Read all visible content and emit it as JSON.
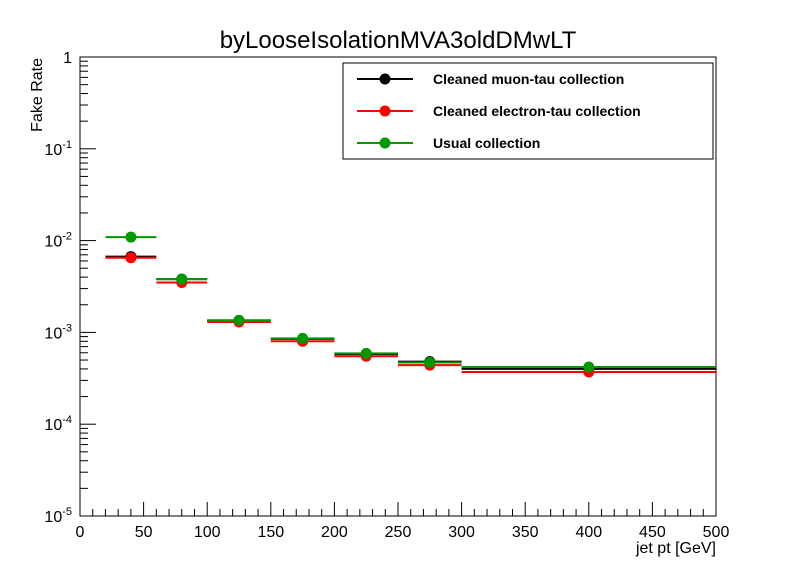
{
  "chart_data": {
    "type": "scatter",
    "title": "byLooseIsolationMVA3oldDMwLT",
    "xlabel": "jet pt [GeV]",
    "ylabel": "Fake Rate",
    "xlim": [
      0,
      500
    ],
    "ylim": [
      1e-05,
      1
    ],
    "y_scale": "log",
    "x_ticks": [
      "0",
      "50",
      "100",
      "150",
      "200",
      "250",
      "300",
      "350",
      "400",
      "450",
      "500"
    ],
    "y_ticks": [
      {
        "value": 1,
        "base": "1",
        "exp": ""
      },
      {
        "value": 0.1,
        "base": "10",
        "exp": "-1"
      },
      {
        "value": 0.01,
        "base": "10",
        "exp": "-2"
      },
      {
        "value": 0.001,
        "base": "10",
        "exp": "-3"
      },
      {
        "value": 0.0001,
        "base": "10",
        "exp": "-4"
      },
      {
        "value": 1e-05,
        "base": "10",
        "exp": "-5"
      }
    ],
    "legend_position": "top-right",
    "grid": false,
    "series": [
      {
        "name": "Cleaned muon-tau collection",
        "color": "#000000",
        "points": [
          {
            "x": 40,
            "xlo": 20,
            "xhi": 60,
            "y": 0.0067
          },
          {
            "x": 80,
            "xlo": 60,
            "xhi": 100,
            "y": 0.0038
          },
          {
            "x": 125,
            "xlo": 100,
            "xhi": 150,
            "y": 0.00135
          },
          {
            "x": 175,
            "xlo": 150,
            "xhi": 200,
            "y": 0.00085
          },
          {
            "x": 225,
            "xlo": 200,
            "xhi": 250,
            "y": 0.00058
          },
          {
            "x": 275,
            "xlo": 250,
            "xhi": 300,
            "y": 0.00048
          },
          {
            "x": 400,
            "xlo": 300,
            "xhi": 500,
            "y": 0.0004
          }
        ]
      },
      {
        "name": "Cleaned electron-tau collection",
        "color": "#ff0000",
        "points": [
          {
            "x": 40,
            "xlo": 20,
            "xhi": 60,
            "y": 0.0065
          },
          {
            "x": 80,
            "xlo": 60,
            "xhi": 100,
            "y": 0.0035
          },
          {
            "x": 125,
            "xlo": 100,
            "xhi": 150,
            "y": 0.0013
          },
          {
            "x": 175,
            "xlo": 150,
            "xhi": 200,
            "y": 0.0008
          },
          {
            "x": 225,
            "xlo": 200,
            "xhi": 250,
            "y": 0.00055
          },
          {
            "x": 275,
            "xlo": 250,
            "xhi": 300,
            "y": 0.00044
          },
          {
            "x": 400,
            "xlo": 300,
            "xhi": 500,
            "y": 0.00037
          }
        ]
      },
      {
        "name": "Usual collection",
        "color": "#009900",
        "points": [
          {
            "x": 40,
            "xlo": 20,
            "xhi": 60,
            "y": 0.0109
          },
          {
            "x": 80,
            "xlo": 60,
            "xhi": 100,
            "y": 0.0038
          },
          {
            "x": 125,
            "xlo": 100,
            "xhi": 150,
            "y": 0.00135
          },
          {
            "x": 175,
            "xlo": 150,
            "xhi": 200,
            "y": 0.00086
          },
          {
            "x": 225,
            "xlo": 200,
            "xhi": 250,
            "y": 0.00059
          },
          {
            "x": 275,
            "xlo": 250,
            "xhi": 300,
            "y": 0.00047
          },
          {
            "x": 400,
            "xlo": 300,
            "xhi": 500,
            "y": 0.00042
          }
        ]
      }
    ]
  }
}
